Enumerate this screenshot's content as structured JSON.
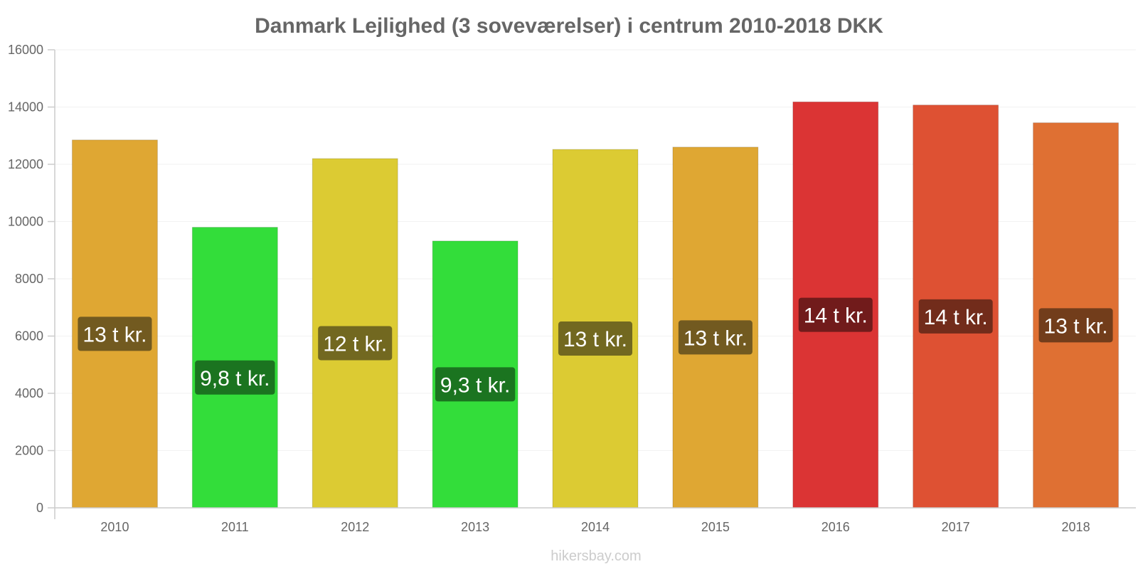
{
  "chart_data": {
    "type": "bar",
    "title": "Danmark Lejlighed (3 soveværelser) i centrum 2010-2018 DKK",
    "xlabel": "",
    "ylabel": "",
    "ylim": [
      0,
      16000
    ],
    "yticks": [
      0,
      2000,
      4000,
      6000,
      8000,
      10000,
      12000,
      14000,
      16000
    ],
    "categories": [
      "2010",
      "2011",
      "2012",
      "2013",
      "2014",
      "2015",
      "2016",
      "2017",
      "2018"
    ],
    "values": [
      12850,
      9800,
      12200,
      9320,
      12520,
      12600,
      14180,
      14070,
      13450
    ],
    "data_labels": [
      "13 t kr.",
      "9,8 t kr.",
      "12 t kr.",
      "9,3 t kr.",
      "13 t kr.",
      "13 t kr.",
      "14 t kr.",
      "14 t kr.",
      "13 t kr."
    ],
    "bar_colors": [
      "#dfa733",
      "#33dd3a",
      "#dccb33",
      "#33dd3a",
      "#dccb33",
      "#dfa733",
      "#db3434",
      "#de5133",
      "#df7033"
    ],
    "label_bg_colors": [
      "#6b5520",
      "#1a6e1f",
      "#6b6220",
      "#1a6e1f",
      "#6b6220",
      "#6b5520",
      "#6b1a1a",
      "#6b2a1a",
      "#6b3a1a"
    ],
    "grid": true,
    "legend": "none"
  },
  "footer": {
    "credit": "hikersbay.com"
  }
}
